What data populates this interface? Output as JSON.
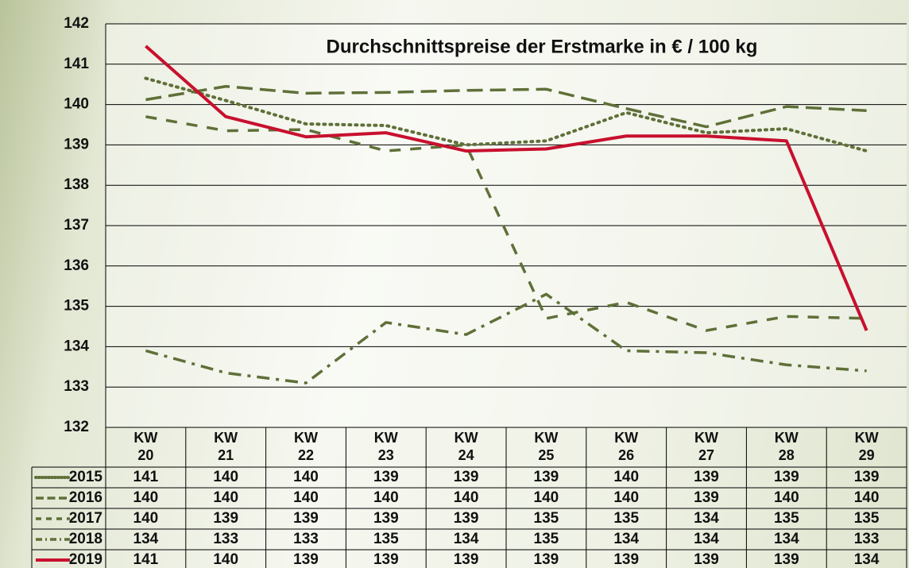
{
  "chart_data": {
    "type": "line",
    "title": "Durchschnittspreise der Erstmarke in € / 100 kg",
    "categories": [
      "KW 20",
      "KW 21",
      "KW 22",
      "KW 23",
      "KW 24",
      "KW 25",
      "KW 26",
      "KW 27",
      "KW 28",
      "KW 29"
    ],
    "ylim": [
      132,
      142
    ],
    "yticks": [
      132,
      133,
      134,
      135,
      136,
      137,
      138,
      139,
      140,
      141,
      142
    ],
    "grid": true,
    "series": [
      {
        "name": "2015",
        "color": "#5f7038",
        "dash": "2 6",
        "width": 4,
        "values": [
          140.65,
          140.1,
          139.52,
          139.48,
          139.0,
          139.1,
          139.8,
          139.3,
          139.4,
          138.85
        ],
        "value_labels": [
          "141",
          "140",
          "140",
          "139",
          "139",
          "139",
          "140",
          "139",
          "139",
          "139"
        ]
      },
      {
        "name": "2016",
        "color": "#5f7038",
        "dash": "20 9",
        "width": 3.5,
        "values": [
          140.12,
          140.45,
          140.28,
          140.3,
          140.35,
          140.38,
          139.9,
          139.45,
          139.95,
          139.85
        ],
        "value_labels": [
          "140",
          "140",
          "140",
          "140",
          "140",
          "140",
          "140",
          "139",
          "140",
          "140"
        ]
      },
      {
        "name": "2017",
        "color": "#5f7038",
        "dash": "14 12",
        "width": 3.5,
        "values": [
          139.7,
          139.35,
          139.38,
          138.85,
          139.0,
          134.7,
          135.1,
          134.4,
          134.75,
          134.7
        ],
        "value_labels": [
          "140",
          "139",
          "139",
          "139",
          "139",
          "135",
          "135",
          "134",
          "135",
          "135"
        ]
      },
      {
        "name": "2018",
        "color": "#5f7038",
        "dash": "16 8 4 8",
        "width": 3.5,
        "values": [
          133.9,
          133.35,
          133.1,
          134.6,
          134.3,
          135.3,
          133.9,
          133.85,
          133.55,
          133.4
        ],
        "value_labels": [
          "134",
          "133",
          "133",
          "135",
          "134",
          "135",
          "134",
          "134",
          "134",
          "133"
        ]
      },
      {
        "name": "2019",
        "color": "#c8102e",
        "dash": "none",
        "width": 4,
        "values": [
          141.45,
          139.7,
          139.2,
          139.3,
          138.85,
          138.9,
          139.22,
          139.22,
          139.1,
          134.4
        ],
        "value_labels": [
          "141",
          "140",
          "139",
          "139",
          "139",
          "139",
          "139",
          "139",
          "139",
          "134"
        ]
      }
    ]
  }
}
